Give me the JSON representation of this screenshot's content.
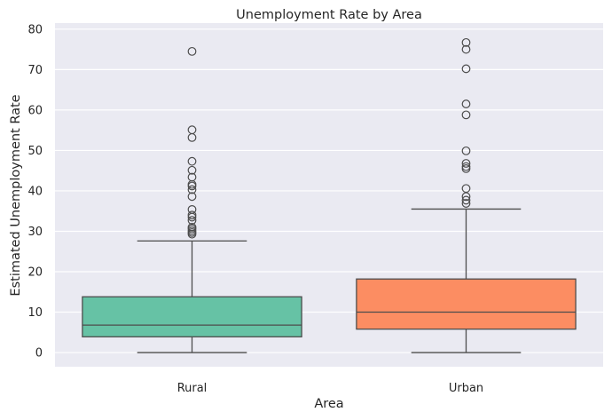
{
  "chart_data": {
    "type": "box",
    "title": "Unemployment Rate by Area",
    "xlabel": "Area",
    "ylabel": "Estimated Unemployment Rate",
    "ylim": [
      -3.5,
      81.5
    ],
    "yticks": [
      0,
      10,
      20,
      30,
      40,
      50,
      60,
      70,
      80
    ],
    "grid": true,
    "categories": [
      "Rural",
      "Urban"
    ],
    "series": [
      {
        "name": "Rural",
        "color": "#66c2a5",
        "whisker_low": 0.0,
        "q1": 3.9,
        "median": 6.8,
        "q3": 13.8,
        "whisker_high": 27.6,
        "outliers": [
          74.5,
          55.1,
          53.2,
          47.3,
          45.1,
          43.4,
          41.6,
          41.2,
          40.3,
          38.6,
          35.4,
          34.0,
          33.5,
          32.7,
          31.0,
          30.6,
          30.1,
          29.7,
          29.3
        ]
      },
      {
        "name": "Urban",
        "color": "#fc8d62",
        "whisker_low": 0.0,
        "q1": 5.8,
        "median": 10.0,
        "q3": 18.2,
        "whisker_high": 35.5,
        "outliers": [
          76.7,
          75.0,
          70.2,
          61.5,
          58.8,
          49.9,
          46.8,
          46.0,
          45.5,
          40.6,
          38.6,
          37.7,
          36.9
        ]
      }
    ]
  }
}
